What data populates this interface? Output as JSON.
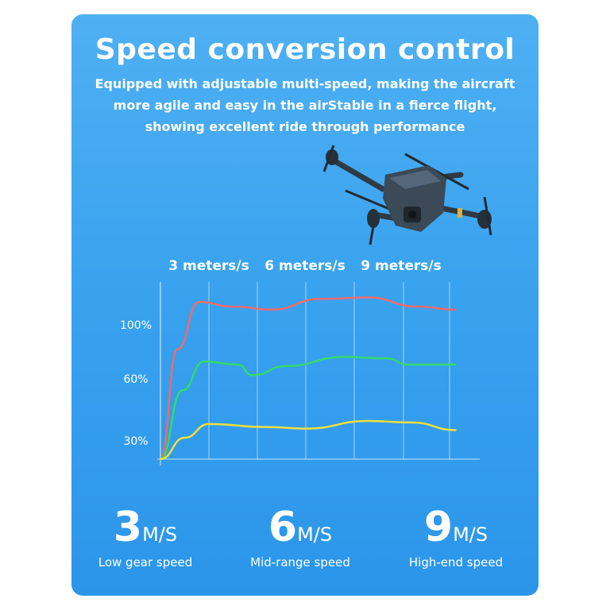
{
  "header": {
    "title": "Speed conversion control",
    "subtitle_lines": [
      "Equipped with adjustable multi-speed, making the aircraft",
      "more agile and easy in the airStable in a fierce flight,",
      "showing excellent ride through performance"
    ]
  },
  "chart_data": {
    "type": "line",
    "top_labels": [
      "3 meters/s",
      "6 meters/s",
      "9 meters/s"
    ],
    "y_tick_labels": [
      "100%",
      "60%",
      "30%"
    ],
    "series": [
      {
        "color": "#ef6b6b",
        "shape": [
          [
            0,
            0
          ],
          [
            0.35,
            0.72
          ],
          [
            0.8,
            1.03
          ],
          [
            1.5,
            1.0
          ],
          [
            2.3,
            0.98
          ],
          [
            3.3,
            1.05
          ],
          [
            4.3,
            1.06
          ],
          [
            5.3,
            1.0
          ],
          [
            6.1,
            0.98
          ]
        ]
      },
      {
        "color": "#35d96a",
        "shape": [
          [
            0,
            0
          ],
          [
            0.45,
            0.45
          ],
          [
            0.9,
            0.64
          ],
          [
            1.6,
            0.62
          ],
          [
            1.9,
            0.55
          ],
          [
            2.6,
            0.61
          ],
          [
            3.8,
            0.67
          ],
          [
            4.7,
            0.66
          ],
          [
            5.1,
            0.62
          ],
          [
            6.1,
            0.62
          ]
        ]
      },
      {
        "color": "#f2df3a",
        "shape": [
          [
            0,
            0
          ],
          [
            0.5,
            0.14
          ],
          [
            1.0,
            0.23
          ],
          [
            2.2,
            0.21
          ],
          [
            3.0,
            0.2
          ],
          [
            4.3,
            0.25
          ],
          [
            5.2,
            0.24
          ],
          [
            6.1,
            0.19
          ]
        ]
      }
    ],
    "grid": true,
    "legend": "none"
  },
  "speeds": [
    {
      "value": "3",
      "unit": "M/S",
      "label": "Low gear speed"
    },
    {
      "value": "6",
      "unit": "M/S",
      "label": "Mid-range speed"
    },
    {
      "value": "9",
      "unit": "M/S",
      "label": "High-end speed"
    }
  ],
  "colors": {
    "background": "#3aa3ef",
    "red": "#ef6b6b",
    "green": "#35d96a",
    "yellow": "#f2df3a"
  }
}
